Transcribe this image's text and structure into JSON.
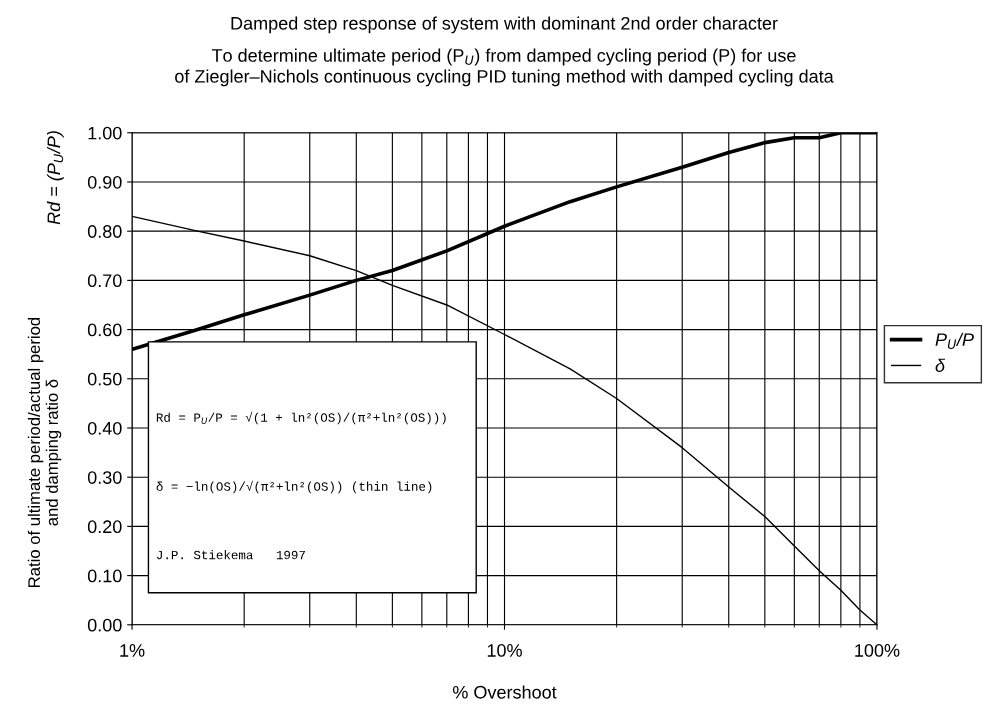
{
  "chart_data": {
    "type": "line",
    "title": "Damped step response of system with dominant 2nd order character",
    "subtitle": "To determine ultimate period (P$_{U}$) from damped cycling period (P) for use\nof Ziegler–Nichols continuous cycling PID tuning method with damped cycling data",
    "xlabel": "% Overshoot",
    "ylabel": "Ratio of ultimate period/actual period\nand damping ratio δ",
    "x": [
      1,
      1.5,
      2,
      3,
      4,
      5,
      7,
      10,
      15,
      20,
      30,
      40,
      50,
      60,
      70,
      80,
      90,
      100
    ],
    "series": [
      {
        "name": "P$_{U}$/P",
        "color": "#000000",
        "values": [
          0.56,
          0.6,
          0.63,
          0.67,
          0.7,
          0.72,
          0.76,
          0.81,
          0.86,
          0.89,
          0.93,
          0.96,
          0.98,
          0.99,
          0.99,
          1.0,
          1.0,
          1.0
        ]
      },
      {
        "name": "δ",
        "color": "#000000",
        "values": [
          0.83,
          0.8,
          0.78,
          0.75,
          0.72,
          0.69,
          0.65,
          0.59,
          0.52,
          0.46,
          0.36,
          0.28,
          0.22,
          0.16,
          0.11,
          0.07,
          0.03,
          0.0
        ]
      }
    ],
    "log": "x",
    "xlim": [
      1,
      100
    ],
    "xticks": [
      {
        "value": 1,
        "label": "1%"
      },
      {
        "value": 10,
        "label": "10%"
      },
      {
        "value": 100,
        "label": "100%"
      }
    ],
    "ylim": [
      0,
      1
    ],
    "yticks": [
      {
        "value": 0,
        "label": "0.00"
      },
      {
        "value": 0.1,
        "label": "0.10"
      },
      {
        "value": 0.2,
        "label": "0.20"
      },
      {
        "value": 0.3,
        "label": "0.30"
      },
      {
        "value": 0.4,
        "label": "0.40"
      },
      {
        "value": 0.5,
        "label": "0.50"
      },
      {
        "value": 0.6,
        "label": "0.60"
      },
      {
        "value": 0.7,
        "label": "0.70"
      },
      {
        "value": 0.8,
        "label": "0.80"
      },
      {
        "value": 0.9,
        "label": "0.90"
      },
      {
        "value": 1,
        "label": "1.00"
      }
    ],
    "grid": true,
    "legend": "right",
    "marker": "none",
    "line_style": "solid",
    "annotations": [
      "Rd = (P$_{U}$/P)",
      "Rd = P$_{U}$/P = √(1 + ln²(OS)/(π²+ln²(OS)))",
      "δ = −ln(OS)/√(π²+ln²(OS)) (thin line)",
      "J.P. Stiekema   1997"
    ]
  }
}
